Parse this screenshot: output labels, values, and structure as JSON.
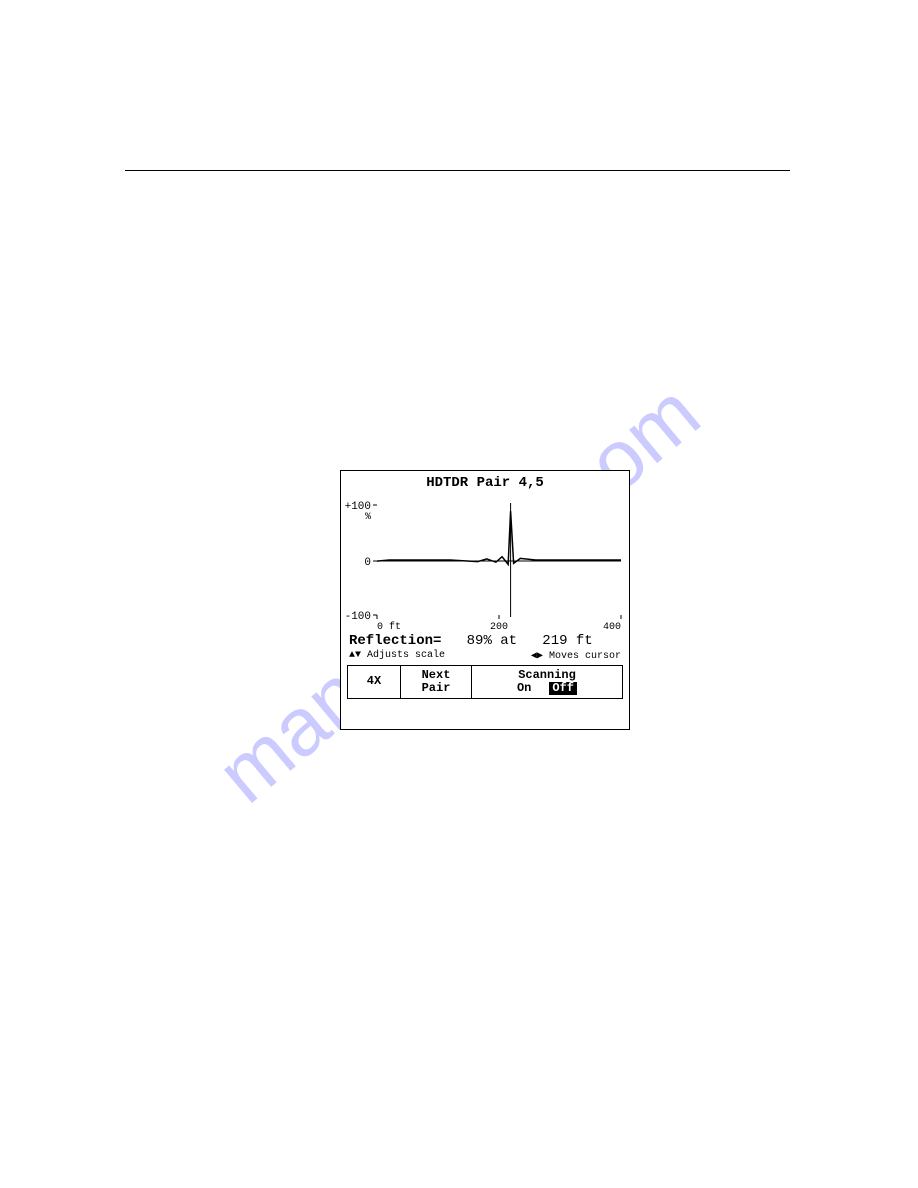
{
  "watermark": {
    "text": "manualhive.com"
  },
  "divider": {
    "color": "#000000"
  },
  "screen": {
    "title": "HDTDR Pair 4,5",
    "plot": {
      "type": "line",
      "ylim": [
        -100,
        100
      ],
      "yticks": [
        -100,
        0,
        100
      ],
      "ytick_labels": [
        "-100",
        "0",
        "+100"
      ],
      "y_unit": "%",
      "xlim": [
        0,
        400
      ],
      "xticks": [
        0,
        200,
        400
      ],
      "xtick_labels": [
        "0",
        "200",
        "400"
      ],
      "x_unit": "ft",
      "xtick_unit_label": "0 ft",
      "cursor_x": 219,
      "series": [
        {
          "x": 0,
          "y": -2
        },
        {
          "x": 20,
          "y": 0
        },
        {
          "x": 60,
          "y": 0
        },
        {
          "x": 120,
          "y": 0
        },
        {
          "x": 165,
          "y": -3
        },
        {
          "x": 180,
          "y": 2
        },
        {
          "x": 195,
          "y": -4
        },
        {
          "x": 205,
          "y": 6
        },
        {
          "x": 215,
          "y": -8
        },
        {
          "x": 219,
          "y": 89
        },
        {
          "x": 224,
          "y": -6
        },
        {
          "x": 235,
          "y": 3
        },
        {
          "x": 260,
          "y": 0
        },
        {
          "x": 300,
          "y": 0
        },
        {
          "x": 400,
          "y": 0
        }
      ],
      "line_color": "#000000",
      "axis_color": "#000000",
      "background_color": "#ffffff"
    },
    "readout": {
      "label": "Reflection=",
      "value": "89%",
      "at": "at",
      "distance": "219 ft"
    },
    "hints": {
      "left_arrows": "▲▼",
      "left_text": "Adjusts scale",
      "right_arrows": "◀▶",
      "right_text": "Moves cursor"
    },
    "softkeys": {
      "k1": "4X",
      "k2_line1": "Next",
      "k2_line2": "Pair",
      "k3_title": "Scanning",
      "k3_on": "On",
      "k3_off": "Off"
    }
  }
}
